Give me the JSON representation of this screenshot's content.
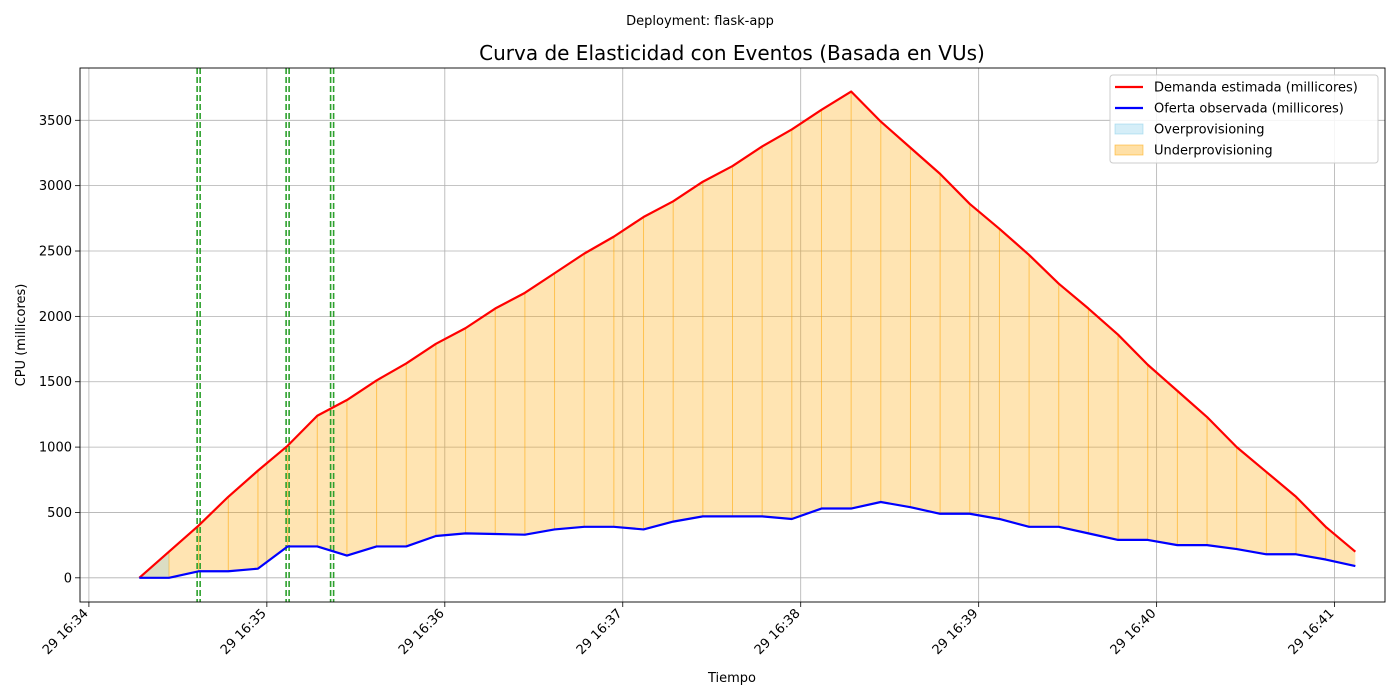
{
  "chart_data": {
    "type": "line",
    "suptitle": "Deployment: flask-app",
    "title": "Curva de Elasticidad con Eventos (Basada en VUs)",
    "xlabel": "Tiempo",
    "ylabel": "CPU (millicores)",
    "xlim": [
      "29 16:33:57",
      "29 16:41:17"
    ],
    "ylim": [
      -185,
      3900
    ],
    "x_ticks": [
      {
        "time": "29 16:34:00",
        "label": "29 16:34"
      },
      {
        "time": "29 16:35:00",
        "label": "29 16:35"
      },
      {
        "time": "29 16:36:00",
        "label": "29 16:36"
      },
      {
        "time": "29 16:37:00",
        "label": "29 16:37"
      },
      {
        "time": "29 16:38:00",
        "label": "29 16:38"
      },
      {
        "time": "29 16:39:00",
        "label": "29 16:39"
      },
      {
        "time": "29 16:40:00",
        "label": "29 16:40"
      },
      {
        "time": "29 16:41:00",
        "label": "29 16:41"
      }
    ],
    "y_ticks": [
      0,
      500,
      1000,
      1500,
      2000,
      2500,
      3000,
      3500
    ],
    "grid": true,
    "legend_position": "top-right",
    "x": [
      "29 16:34:17",
      "29 16:34:27",
      "29 16:34:37",
      "29 16:34:47",
      "29 16:34:57",
      "29 16:35:07",
      "29 16:35:17",
      "29 16:35:27",
      "29 16:35:37",
      "29 16:35:47",
      "29 16:35:57",
      "29 16:36:07",
      "29 16:36:17",
      "29 16:36:27",
      "29 16:36:37",
      "29 16:36:47",
      "29 16:36:57",
      "29 16:37:07",
      "29 16:37:17",
      "29 16:37:27",
      "29 16:37:37",
      "29 16:37:47",
      "29 16:37:57",
      "29 16:38:07",
      "29 16:38:17",
      "29 16:38:27",
      "29 16:38:37",
      "29 16:38:47",
      "29 16:38:57",
      "29 16:39:07",
      "29 16:39:17",
      "29 16:39:27",
      "29 16:39:37",
      "29 16:39:47",
      "29 16:39:57",
      "29 16:40:07",
      "29 16:40:17",
      "29 16:40:27",
      "29 16:40:37",
      "29 16:40:47",
      "29 16:40:57",
      "29 16:41:07"
    ],
    "series": [
      {
        "name": "Demanda estimada (millicores)",
        "color": "#ff0000",
        "values": [
          0,
          200,
          400,
          620,
          820,
          1010,
          1240,
          1360,
          1510,
          1640,
          1790,
          1910,
          2060,
          2180,
          2330,
          2480,
          2610,
          2760,
          2880,
          3030,
          3150,
          3300,
          3430,
          3580,
          3720,
          3490,
          3290,
          3090,
          2860,
          2670,
          2470,
          2250,
          2060,
          1860,
          1630,
          1430,
          1230,
          1000,
          810,
          620,
          390,
          200
        ]
      },
      {
        "name": "Oferta observada (millicores)",
        "color": "#0000ff",
        "values": [
          0,
          0,
          50,
          50,
          70,
          240,
          240,
          170,
          240,
          240,
          320,
          340,
          335,
          330,
          370,
          390,
          390,
          370,
          430,
          470,
          470,
          470,
          450,
          530,
          530,
          580,
          540,
          490,
          490,
          450,
          390,
          390,
          340,
          290,
          290,
          250,
          250,
          220,
          180,
          180,
          140,
          90
        ]
      }
    ],
    "fills": [
      {
        "name": "Overprovisioning",
        "color": "#87ceeb",
        "opacity": 0.3
      },
      {
        "name": "Underprovisioning",
        "color": "#ffa500",
        "opacity": 0.3
      }
    ],
    "events": [
      {
        "time": "29 16:34:37",
        "color": "#2ca02c",
        "style": "dashed"
      },
      {
        "time": "29 16:35:07",
        "color": "#2ca02c",
        "style": "dashed"
      },
      {
        "time": "29 16:35:22",
        "color": "#2ca02c",
        "style": "dashed"
      }
    ]
  }
}
